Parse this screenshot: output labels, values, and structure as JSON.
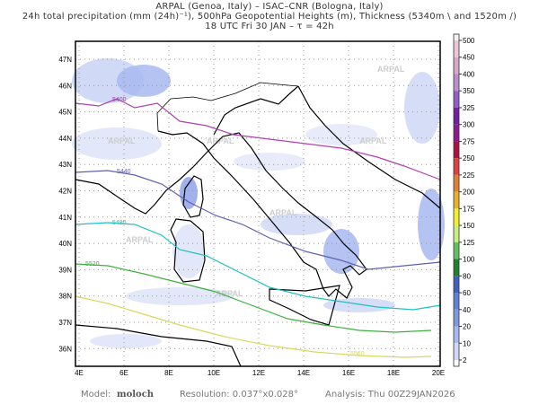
{
  "header": {
    "line1": "ARPAL (Genoa, Italy)  –  ISAC–CNR (Bologna, Italy)",
    "line2": "24h total precipitation (mm (24h)⁻¹), 500hPa Geopotential Heights (m), Thickness (5340m \\ and 1520m /)",
    "line3": "18 UTC Fri 30 JAN  –  τ = 42h"
  },
  "map": {
    "lon_labels": [
      "4E",
      "6E",
      "8E",
      "10E",
      "12E",
      "14E",
      "16E",
      "18E",
      "20E"
    ],
    "lat_labels": [
      "36N",
      "37N",
      "38N",
      "39N",
      "40N",
      "41N",
      "42N",
      "43N",
      "44N",
      "45N",
      "46N",
      "47N"
    ],
    "watermark": "ARPAL",
    "contours": [
      {
        "level": "5400",
        "color": "#b040b0"
      },
      {
        "level": "5440",
        "color": "#6060b0"
      },
      {
        "level": "5480",
        "color": "#20c0c0"
      },
      {
        "level": "5520",
        "color": "#40b040"
      },
      {
        "level": "5560",
        "color": "#d8d860"
      }
    ]
  },
  "colorbar": {
    "labels": [
      "500",
      "450",
      "400",
      "350",
      "325",
      "300",
      "275",
      "250",
      "225",
      "200",
      "175",
      "150",
      "125",
      "100",
      "80",
      "60",
      "40",
      "20",
      "10",
      "2"
    ],
    "colors": [
      "#f4f0f4",
      "#e8c8d8",
      "#d8a8c8",
      "#b890d0",
      "#9060c8",
      "#7020a0",
      "#901890",
      "#b01040",
      "#e04040",
      "#e08030",
      "#e8b030",
      "#f0f030",
      "#c8f080",
      "#60c060",
      "#208030",
      "#4060c0",
      "#6080d8",
      "#8098e0",
      "#a8b8f0",
      "#d0d8f8",
      "#ffffff"
    ]
  },
  "footer": {
    "model_label": "Model:",
    "model_value": "moloch",
    "resolution": "Resolution: 0.037°x0.028°",
    "analysis": "Analysis: Thu 00Z29JAN2026"
  }
}
